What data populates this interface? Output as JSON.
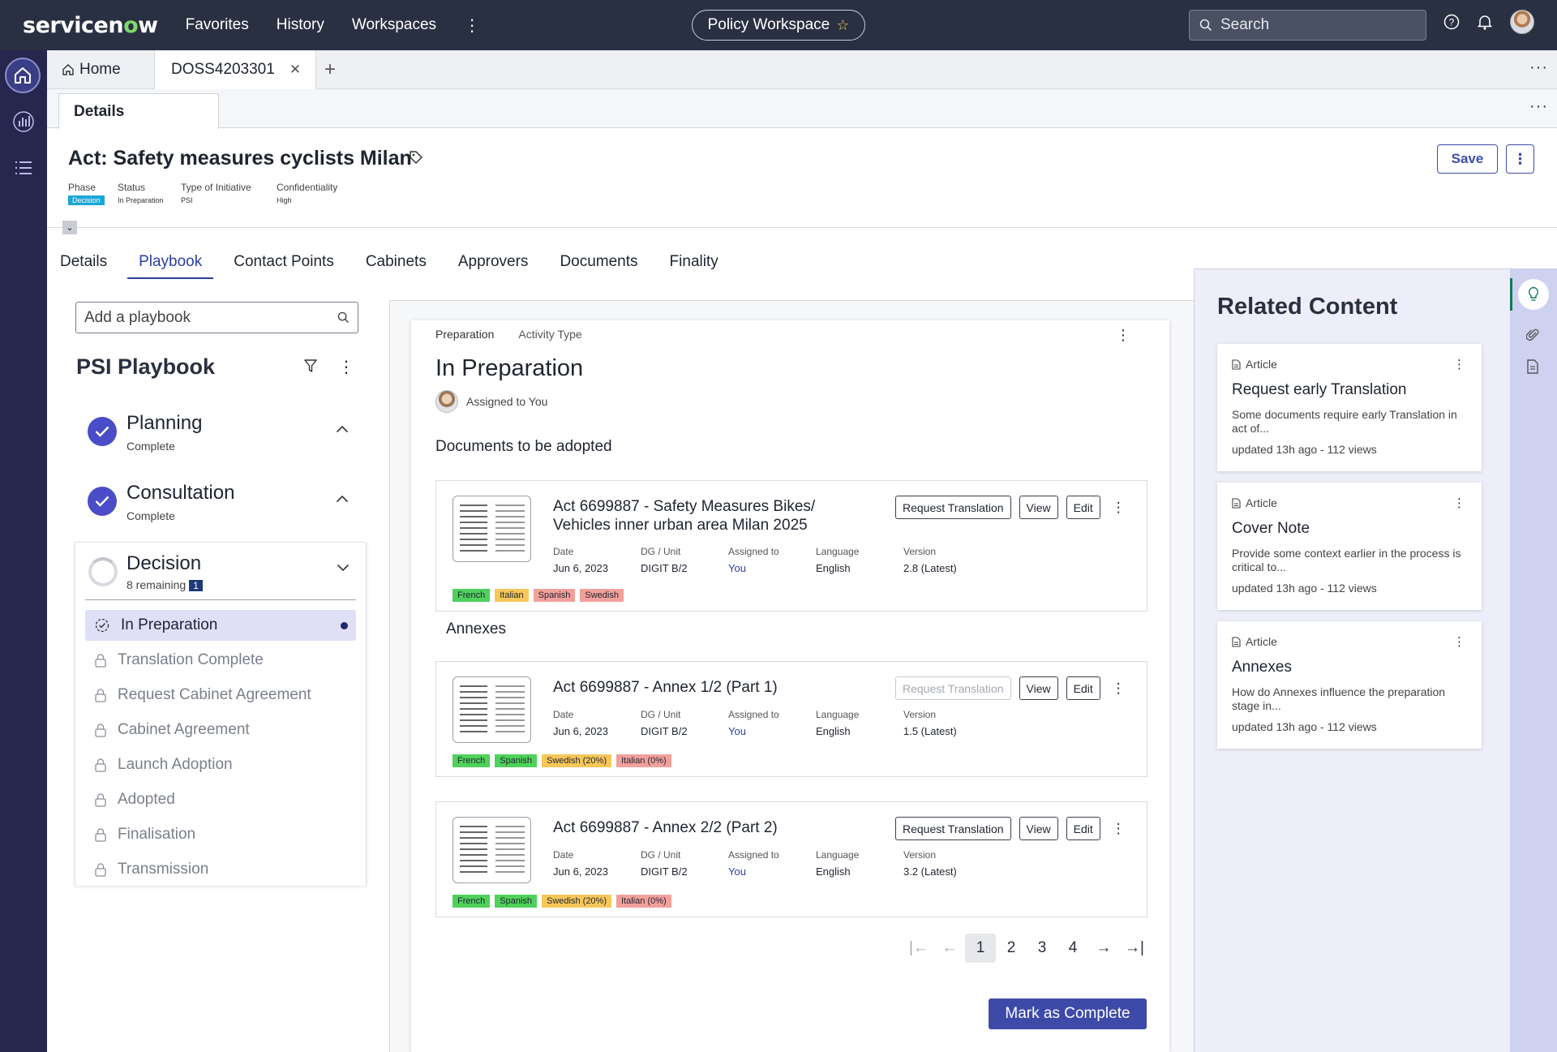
{
  "brand": {
    "logo_text_a": "servicen",
    "logo_text_o": "o",
    "logo_text_b": "w"
  },
  "topnav": {
    "items": [
      "Favorites",
      "History",
      "Workspaces"
    ],
    "workspace": "Policy Workspace",
    "search_placeholder": "Search"
  },
  "tabs": {
    "home": "Home",
    "active": "DOSS4203301"
  },
  "subtab": "Details",
  "record": {
    "title": "Act: Safety measures cyclists Milan",
    "save": "Save",
    "meta": [
      {
        "label": "Phase",
        "value": "Decision"
      },
      {
        "label": "Status",
        "value": "In Preparation"
      },
      {
        "label": "Type of Initiative",
        "value": "PSI"
      },
      {
        "label": "Confidentiality",
        "value": "High"
      }
    ]
  },
  "page_tabs": [
    "Details",
    "Playbook",
    "Contact Points",
    "Cabinets",
    "Approvers",
    "Documents",
    "Finality"
  ],
  "playbook": {
    "search_placeholder": "Add a playbook",
    "title": "PSI Playbook",
    "phases": [
      {
        "name": "Planning",
        "status": "Complete"
      },
      {
        "name": "Consultation",
        "status": "Complete"
      }
    ],
    "decision": {
      "name": "Decision",
      "remaining": "8 remaining",
      "badge": "1"
    },
    "steps": [
      "In Preparation",
      "Translation Complete",
      "Request Cabinet Agreement",
      "Cabinet Agreement",
      "Launch Adoption",
      "Adopted",
      "Finalisation",
      "Transmission"
    ]
  },
  "activity": {
    "crumb_a": "Preparation",
    "crumb_b": "Activity Type",
    "title": "In Preparation",
    "assigned": "Assigned to You",
    "docs_heading": "Documents to be adopted",
    "annexes_heading": "Annexes",
    "field_labels": [
      "Date",
      "DG / Unit",
      "Assigned to",
      "Language",
      "Version"
    ],
    "btn_request": "Request Translation",
    "btn_view": "View",
    "btn_edit": "Edit",
    "documents": [
      {
        "title": "Act 6699887 - Safety Measures Bikes/ Vehicles inner urban area Milan 2025",
        "date": "Jun 6, 2023",
        "unit": "DIGIT B/2",
        "assigned": "You",
        "language": "English",
        "version": "2.8 (Latest)",
        "langs": [
          {
            "t": "French",
            "c": "#4fd15b"
          },
          {
            "t": "Italian",
            "c": "#f7c75a"
          },
          {
            "t": "Spanish",
            "c": "#f2a09c"
          },
          {
            "t": "Swedish",
            "c": "#f2a09c"
          }
        ],
        "request_disabled": false
      },
      {
        "title": "Act 6699887 - Annex 1/2 (Part 1)",
        "date": "Jun 6, 2023",
        "unit": "DIGIT B/2",
        "assigned": "You",
        "language": "English",
        "version": "1.5 (Latest)",
        "langs": [
          {
            "t": "French",
            "c": "#4fd15b"
          },
          {
            "t": "Spanish",
            "c": "#4fd15b"
          },
          {
            "t": "Swedish (20%)",
            "c": "#f7c75a"
          },
          {
            "t": "Italian (0%)",
            "c": "#f2a09c"
          }
        ],
        "request_disabled": true
      },
      {
        "title": "Act 6699887 - Annex 2/2 (Part 2)",
        "date": "Jun 6, 2023",
        "unit": "DIGIT B/2",
        "assigned": "You",
        "language": "English",
        "version": "3.2 (Latest)",
        "langs": [
          {
            "t": "French",
            "c": "#4fd15b"
          },
          {
            "t": "Spanish",
            "c": "#4fd15b"
          },
          {
            "t": "Swedish (20%)",
            "c": "#f7c75a"
          },
          {
            "t": "Italian (0%)",
            "c": "#f2a09c"
          }
        ],
        "request_disabled": false
      }
    ],
    "pages": [
      "1",
      "2",
      "3",
      "4"
    ],
    "complete_btn": "Mark as Complete"
  },
  "related": {
    "title": "Related Content",
    "articles": [
      {
        "kind": "Article",
        "title": "Request early Translation",
        "desc": "Some documents require early Translation in act of...",
        "updated": "updated 13h ago - 112 views"
      },
      {
        "kind": "Article",
        "title": "Cover Note",
        "desc": "Provide some context earlier in the process is critical to...",
        "updated": "updated 13h ago - 112 views"
      },
      {
        "kind": "Article",
        "title": "Annexes",
        "desc": "How do Annexes influence the preparation stage in...",
        "updated": "updated 13h ago - 112 views"
      }
    ]
  },
  "colors": {
    "accent": "#3e4aa8",
    "nav_bg": "#293042",
    "rail_bg": "#26264f",
    "related_bg": "#edeef9"
  }
}
